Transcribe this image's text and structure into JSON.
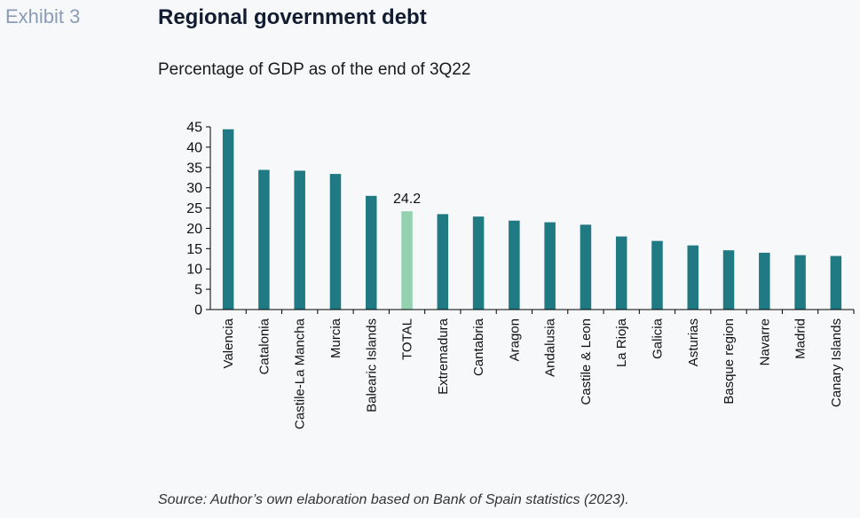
{
  "header": {
    "exhibit": "Exhibit 3",
    "title": "Regional government debt",
    "subtitle": "Percentage of GDP as of the end of 3Q22"
  },
  "footer": {
    "source": "Source: Author’s own elaboration based on Bank of Spain statistics (2023)."
  },
  "colors": {
    "bar": "#1f7a83",
    "highlight": "#94d1b0",
    "axis": "#000000",
    "title": "#121c30",
    "exhibit": "#8a9db5"
  },
  "chart_data": {
    "type": "bar",
    "categories": [
      "Valencia",
      "Catalonia",
      "Castile-La Mancha",
      "Murcia",
      "Balearic Islands",
      "TOTAL",
      "Extremadura",
      "Cantabria",
      "Aragon",
      "Andalusia",
      "Castile & Leon",
      "La Rioja",
      "Galicia",
      "Asturias",
      "Basque region",
      "Navarre",
      "Madrid",
      "Canary Islands"
    ],
    "values": [
      44.4,
      34.4,
      34.2,
      33.4,
      28.0,
      24.2,
      23.5,
      22.9,
      21.9,
      21.5,
      20.9,
      18.0,
      16.9,
      15.8,
      14.6,
      14.0,
      13.4,
      13.2
    ],
    "highlight_category": "TOTAL",
    "data_labels": [
      {
        "category": "TOTAL",
        "text": "24.2"
      }
    ],
    "title": "Regional government debt",
    "subtitle": "Percentage of GDP as of the end of 3Q22",
    "xlabel": "",
    "ylabel": "",
    "ylim": [
      0,
      45
    ],
    "yticks": [
      0,
      5,
      10,
      15,
      20,
      25,
      30,
      35,
      40,
      45
    ],
    "grid": false,
    "legend": "none"
  }
}
